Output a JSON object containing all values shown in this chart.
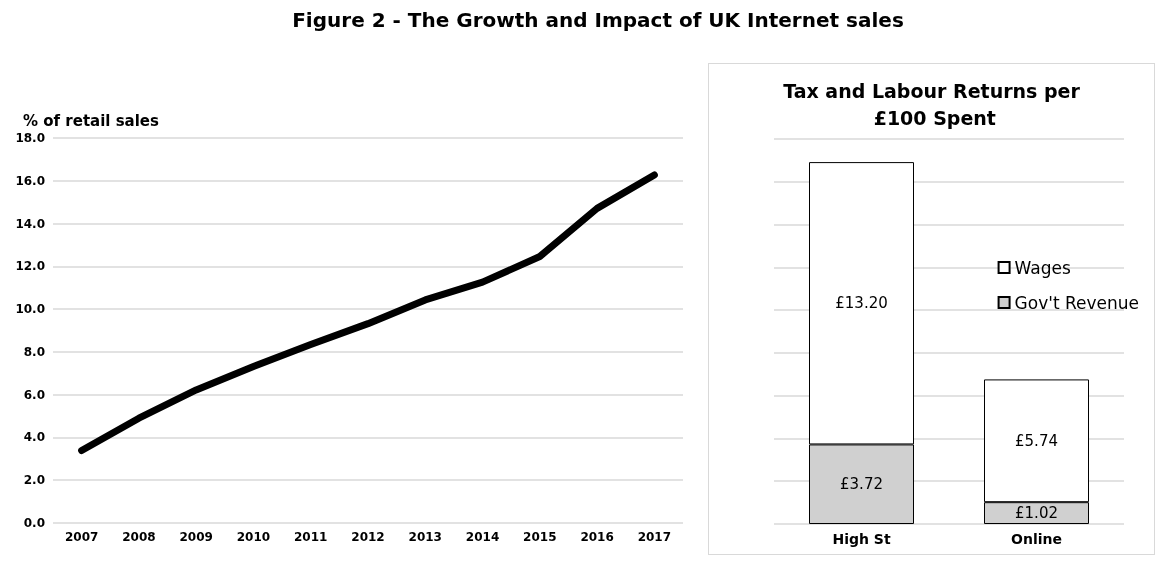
{
  "chart_data": [
    {
      "type": "line",
      "title": "Figure 2 - The Growth and Impact of UK Internet sales",
      "ylabel": "% of retail sales",
      "categories": [
        "2007",
        "2008",
        "2009",
        "2010",
        "2011",
        "2012",
        "2013",
        "2014",
        "2015",
        "2016",
        "2017"
      ],
      "series": [
        {
          "color": "#000000",
          "values": [
            3.39,
            4.9,
            6.22,
            7.32,
            8.35,
            9.32,
            10.43,
            11.26,
            12.46,
            14.71,
            16.27
          ]
        }
      ],
      "ylim": [
        0,
        18
      ],
      "yticks": [
        {
          "value": 0,
          "label": "0.0"
        },
        {
          "value": 2,
          "label": "2.0"
        },
        {
          "value": 4,
          "label": "4.0"
        },
        {
          "value": 6,
          "label": "6.0"
        },
        {
          "value": 8,
          "label": "8.0"
        },
        {
          "value": 10,
          "label": "10.0"
        },
        {
          "value": 12,
          "label": "12.0"
        },
        {
          "value": 14,
          "label": "14.0"
        },
        {
          "value": 16,
          "label": "16.0"
        },
        {
          "value": 18,
          "label": "18.0"
        }
      ],
      "grid": "y",
      "marker": "none",
      "line_style": "solid"
    },
    {
      "type": "bar",
      "title": "Tax and Labour Returns per £100 Spent",
      "stacked": true,
      "categories": [
        "High St",
        "Online"
      ],
      "series": [
        {
          "name": "Gov't Revenue",
          "color": "#d0d0d0",
          "values": [
            3.72,
            1.02
          ],
          "value_labels": [
            "£3.72",
            "£1.02"
          ]
        },
        {
          "name": "Wages",
          "color": "#ffffff",
          "values": [
            13.2,
            5.74
          ],
          "value_labels": [
            "£13.20",
            "£5.74"
          ]
        }
      ],
      "ylim": [
        0,
        18
      ],
      "yticks": [
        {
          "value": 0,
          "label": null
        },
        {
          "value": 2,
          "label": null
        },
        {
          "value": 4,
          "label": null
        },
        {
          "value": 6,
          "label": null
        },
        {
          "value": 8,
          "label": null
        },
        {
          "value": 10,
          "label": null
        },
        {
          "value": 12,
          "label": null
        },
        {
          "value": 14,
          "label": null
        },
        {
          "value": 16,
          "label": null
        },
        {
          "value": 18,
          "label": null
        }
      ],
      "tick_labels": "x",
      "grid": "y",
      "legend": "right"
    }
  ]
}
